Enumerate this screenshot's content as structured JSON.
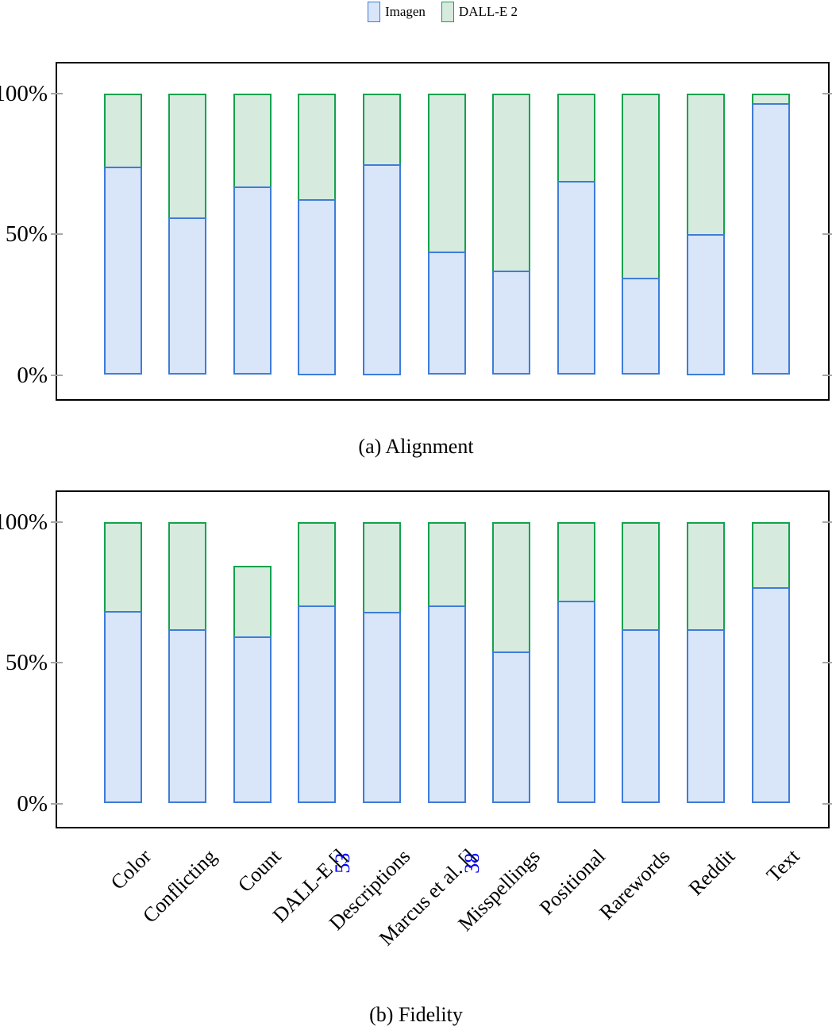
{
  "legend": {
    "items": [
      {
        "label": "Imagen",
        "color_key": "imagen"
      },
      {
        "label": "DALL-E 2",
        "color_key": "dalle2"
      }
    ]
  },
  "colors": {
    "imagen_fill": "#D9E5F8",
    "imagen_border": "#3E7CD9",
    "dalle2_fill": "#D6EADE",
    "dalle2_border": "#13A24E",
    "cite": "#0000FF",
    "axis": "#000000",
    "tick": "#A6A6A6"
  },
  "chart_data": [
    {
      "type": "bar",
      "subtype": "stacked",
      "caption": "(a) Alignment",
      "categories": [
        "Color",
        "Conflicting",
        "Count",
        "DALL-E [53]",
        "Descriptions",
        "Marcus et al. [38]",
        "Misspellings",
        "Positional",
        "Rarewords",
        "Reddit",
        "Text"
      ],
      "series": [
        {
          "name": "Imagen",
          "values": [
            74,
            56,
            67,
            62.5,
            75,
            44,
            37,
            69,
            34.5,
            50,
            96.5
          ]
        },
        {
          "name": "DALL-E 2",
          "values": [
            26,
            44,
            33,
            37.5,
            25,
            56,
            63,
            31,
            65.5,
            50,
            3.5
          ]
        }
      ],
      "y_ticks": [
        {
          "label": "100%",
          "value": 100
        },
        {
          "label": "50%",
          "value": 50
        },
        {
          "label": "0%",
          "value": 0
        }
      ],
      "ylim": [
        0,
        100
      ],
      "grid": false,
      "legend_position": "top-center",
      "show_x_labels": false
    },
    {
      "type": "bar",
      "subtype": "stacked",
      "caption": "(b) Fidelity",
      "categories": [
        "Color",
        "Conflicting",
        "Count",
        "DALL-E [53]",
        "Descriptions",
        "Marcus et al. [38]",
        "Misspellings",
        "Positional",
        "Rarewords",
        "Reddit",
        "Text"
      ],
      "series": [
        {
          "name": "Imagen",
          "values": [
            68.5,
            62,
            59.5,
            70.5,
            68,
            70.5,
            54,
            72,
            62,
            62,
            77
          ]
        },
        {
          "name": "DALL-E 2",
          "values": [
            31.5,
            38,
            25,
            29.5,
            32,
            29.5,
            46,
            28,
            38,
            38,
            23
          ]
        }
      ],
      "y_ticks": [
        {
          "label": "100%",
          "value": 100
        },
        {
          "label": "50%",
          "value": 50
        },
        {
          "label": "0%",
          "value": 0
        }
      ],
      "ylim": [
        0,
        100
      ],
      "grid": false,
      "legend_position": "top-center",
      "show_x_labels": true,
      "x_labels": [
        {
          "text": "Color"
        },
        {
          "text": "Conflicting"
        },
        {
          "text": "Count"
        },
        {
          "text": "DALL-E",
          "cite": "53"
        },
        {
          "text": "Descriptions"
        },
        {
          "text": "Marcus et al.",
          "cite": "38"
        },
        {
          "text": "Misspellings"
        },
        {
          "text": "Positional"
        },
        {
          "text": "Rarewords"
        },
        {
          "text": "Reddit"
        },
        {
          "text": "Text"
        }
      ]
    }
  ]
}
